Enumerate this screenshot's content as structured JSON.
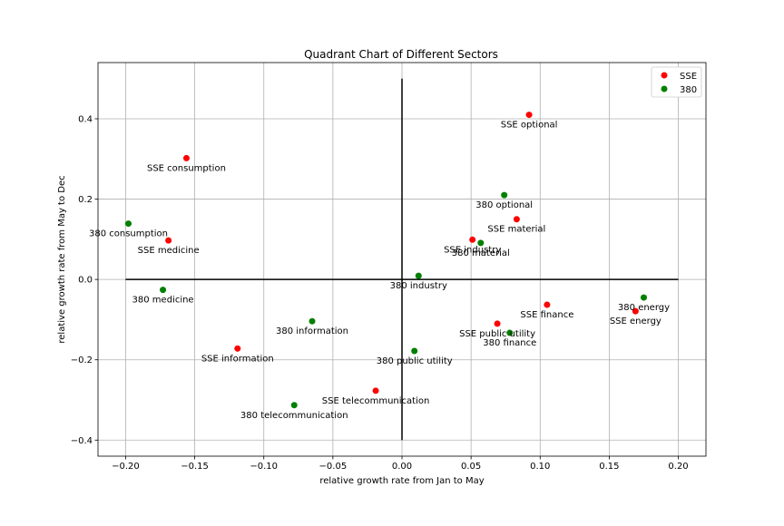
{
  "chart_data": {
    "type": "scatter",
    "title": "Quadrant Chart of Different Sectors",
    "xlabel": "relative growth rate from Jan to May",
    "ylabel": "relative growth rate from May to Dec",
    "xlim": [
      -0.22,
      0.22
    ],
    "ylim": [
      -0.44,
      0.54
    ],
    "x_ticks": [
      -0.2,
      -0.15,
      -0.1,
      -0.05,
      0.0,
      0.05,
      0.1,
      0.15,
      0.2
    ],
    "x_tick_labels": [
      "−0.20",
      "−0.15",
      "−0.10",
      "−0.05",
      "0.00",
      "0.05",
      "0.10",
      "0.15",
      "0.20"
    ],
    "y_ticks": [
      -0.4,
      -0.2,
      0.0,
      0.2,
      0.4
    ],
    "y_tick_labels": [
      "−0.4",
      "−0.2",
      "0.0",
      "0.2",
      "0.4"
    ],
    "grid": true,
    "legend_position": "top-right",
    "quadrant_lines": {
      "horizontal": {
        "y": 0.0,
        "x_from": -0.2,
        "x_to": 0.2
      },
      "vertical": {
        "x": 0.0,
        "y_from": -0.4,
        "y_to": 0.5
      }
    },
    "series": [
      {
        "name": "SSE",
        "color": "#ff0000",
        "points": [
          {
            "label": "SSE optional",
            "x": 0.092,
            "y": 0.41
          },
          {
            "label": "SSE consumption",
            "x": -0.156,
            "y": 0.302
          },
          {
            "label": "SSE material",
            "x": 0.083,
            "y": 0.15
          },
          {
            "label": "SSE medicine",
            "x": -0.169,
            "y": 0.097
          },
          {
            "label": "SSE industry",
            "x": 0.051,
            "y": 0.099
          },
          {
            "label": "SSE finance",
            "x": 0.105,
            "y": -0.063
          },
          {
            "label": "SSE energy",
            "x": 0.169,
            "y": -0.079
          },
          {
            "label": "SSE  public utility",
            "x": 0.069,
            "y": -0.11
          },
          {
            "label": "SSE information",
            "x": -0.119,
            "y": -0.172
          },
          {
            "label": "SSE telecommunication",
            "x": -0.019,
            "y": -0.277
          }
        ]
      },
      {
        "name": "380",
        "color": "#008000",
        "points": [
          {
            "label": "380 optional",
            "x": 0.074,
            "y": 0.21
          },
          {
            "label": "380 consumption",
            "x": -0.198,
            "y": 0.139
          },
          {
            "label": "380 material",
            "x": 0.057,
            "y": 0.091
          },
          {
            "label": "380 industry",
            "x": 0.012,
            "y": 0.009
          },
          {
            "label": "380 medicine",
            "x": -0.173,
            "y": -0.026
          },
          {
            "label": "380 energy",
            "x": 0.175,
            "y": -0.045
          },
          {
            "label": "380 information",
            "x": -0.065,
            "y": -0.104
          },
          {
            "label": "380 finance",
            "x": 0.078,
            "y": -0.133
          },
          {
            "label": "380 public utility",
            "x": 0.009,
            "y": -0.178
          },
          {
            "label": "380 telecommunication",
            "x": -0.078,
            "y": -0.313
          }
        ]
      }
    ]
  }
}
